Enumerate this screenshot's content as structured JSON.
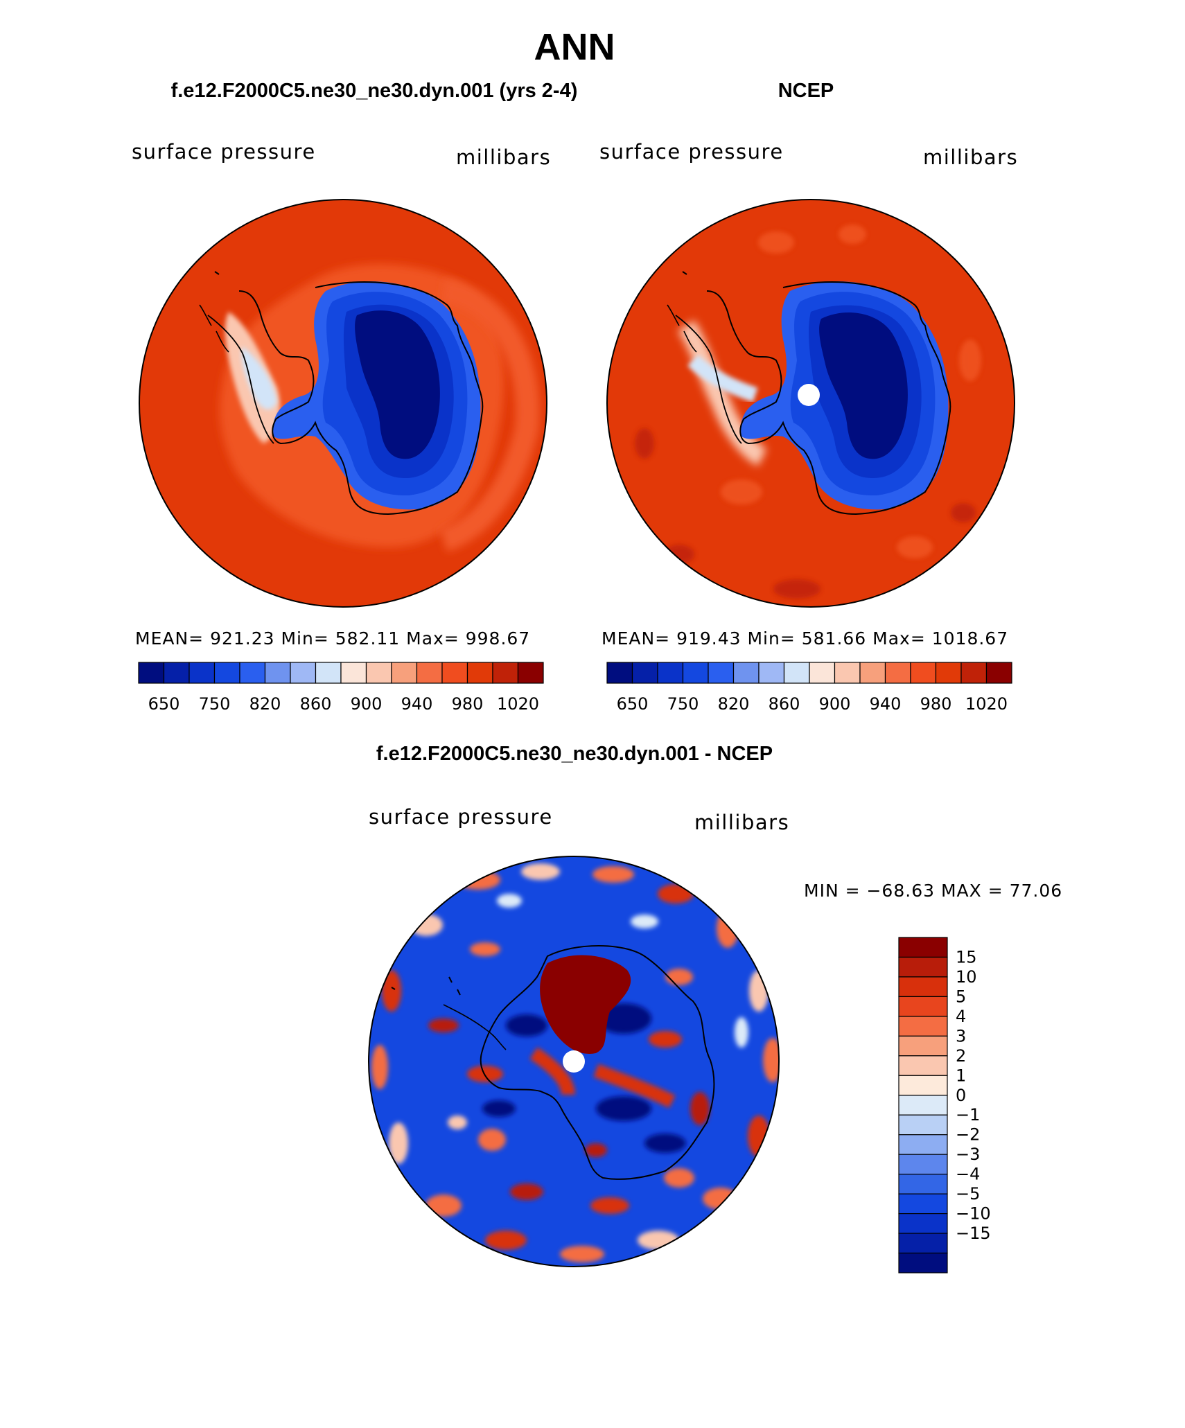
{
  "main_title": "ANN",
  "panels": [
    {
      "id": "model",
      "title": "f.e12.F2000C5.ne30_ne30.dyn.001 (yrs 2-4)",
      "left_label": "surface pressure",
      "right_label": "millibars",
      "stats": "MEAN= 921.23   Min= 582.11   Max= 998.67"
    },
    {
      "id": "obs",
      "title": "NCEP",
      "left_label": "surface pressure",
      "right_label": "millibars",
      "stats": "MEAN= 919.43   Min= 581.66   Max= 1018.67"
    },
    {
      "id": "diff",
      "title": "f.e12.F2000C5.ne30_ne30.dyn.001 - NCEP",
      "left_label": "surface pressure",
      "right_label": "millibars",
      "stats": "MIN = −68.63 MAX =   77.06"
    }
  ],
  "chart_data": [
    {
      "type": "heatmap",
      "projection": "south-polar-stereographic",
      "title": "f.e12.F2000C5.ne30_ne30.dyn.001 (yrs 2-4)",
      "variable": "surface pressure",
      "units": "millibars",
      "mean": 921.23,
      "min": 582.11,
      "max": 998.67,
      "colorbar": {
        "orientation": "horizontal",
        "levels": [
          650,
          700,
          750,
          800,
          820,
          840,
          860,
          880,
          900,
          920,
          940,
          960,
          980,
          1000,
          1020
        ],
        "tick_labels": [
          "650",
          "750",
          "820",
          "860",
          "900",
          "940",
          "980",
          "1020"
        ],
        "colors": [
          "#000d7f",
          "#0520a8",
          "#0a33c9",
          "#1448e0",
          "#2a5fef",
          "#6f93ef",
          "#9fb8f5",
          "#d2e4f8",
          "#fbe5d9",
          "#fac7b0",
          "#f7a07c",
          "#f46d43",
          "#f04d1f",
          "#e13a08",
          "#c02208",
          "#8a0000"
        ]
      }
    },
    {
      "type": "heatmap",
      "projection": "south-polar-stereographic",
      "title": "NCEP",
      "variable": "surface pressure",
      "units": "millibars",
      "mean": 919.43,
      "min": 581.66,
      "max": 1018.67,
      "colorbar": {
        "orientation": "horizontal",
        "levels": [
          650,
          700,
          750,
          800,
          820,
          840,
          860,
          880,
          900,
          920,
          940,
          960,
          980,
          1000,
          1020
        ],
        "tick_labels": [
          "650",
          "750",
          "820",
          "860",
          "900",
          "940",
          "980",
          "1020"
        ],
        "colors": [
          "#000d7f",
          "#0520a8",
          "#0a33c9",
          "#1448e0",
          "#2a5fef",
          "#6f93ef",
          "#9fb8f5",
          "#d2e4f8",
          "#fbe5d9",
          "#fac7b0",
          "#f7a07c",
          "#f46d43",
          "#f04d1f",
          "#e13a08",
          "#c02208",
          "#8a0000"
        ]
      }
    },
    {
      "type": "heatmap",
      "projection": "south-polar-stereographic",
      "title": "f.e12.F2000C5.ne30_ne30.dyn.001 - NCEP",
      "variable": "surface pressure",
      "units": "millibars",
      "min": -68.63,
      "max": 77.06,
      "colorbar": {
        "orientation": "vertical",
        "levels": [
          -15,
          -10,
          -5,
          -4,
          -3,
          -2,
          -1,
          0,
          1,
          2,
          3,
          4,
          5,
          10,
          15
        ],
        "tick_labels": [
          "15",
          "10",
          "5",
          "4",
          "3",
          "2",
          "1",
          "0",
          "−1",
          "−2",
          "−3",
          "−4",
          "−5",
          "−10",
          "−15"
        ],
        "colors_top_to_bottom": [
          "#8a0000",
          "#b81d0a",
          "#d8300c",
          "#e8451e",
          "#f46d43",
          "#f7a07c",
          "#fac7b0",
          "#fdeadb",
          "#dceaf8",
          "#b9d0f5",
          "#8dadf2",
          "#5d86ed",
          "#3366e6",
          "#1448e0",
          "#0a33c9",
          "#0520a8",
          "#000d7f"
        ]
      }
    }
  ],
  "colors": {
    "ocean_warm": "#e23908",
    "coast": "#000000",
    "pole_hole": "#ffffff"
  }
}
